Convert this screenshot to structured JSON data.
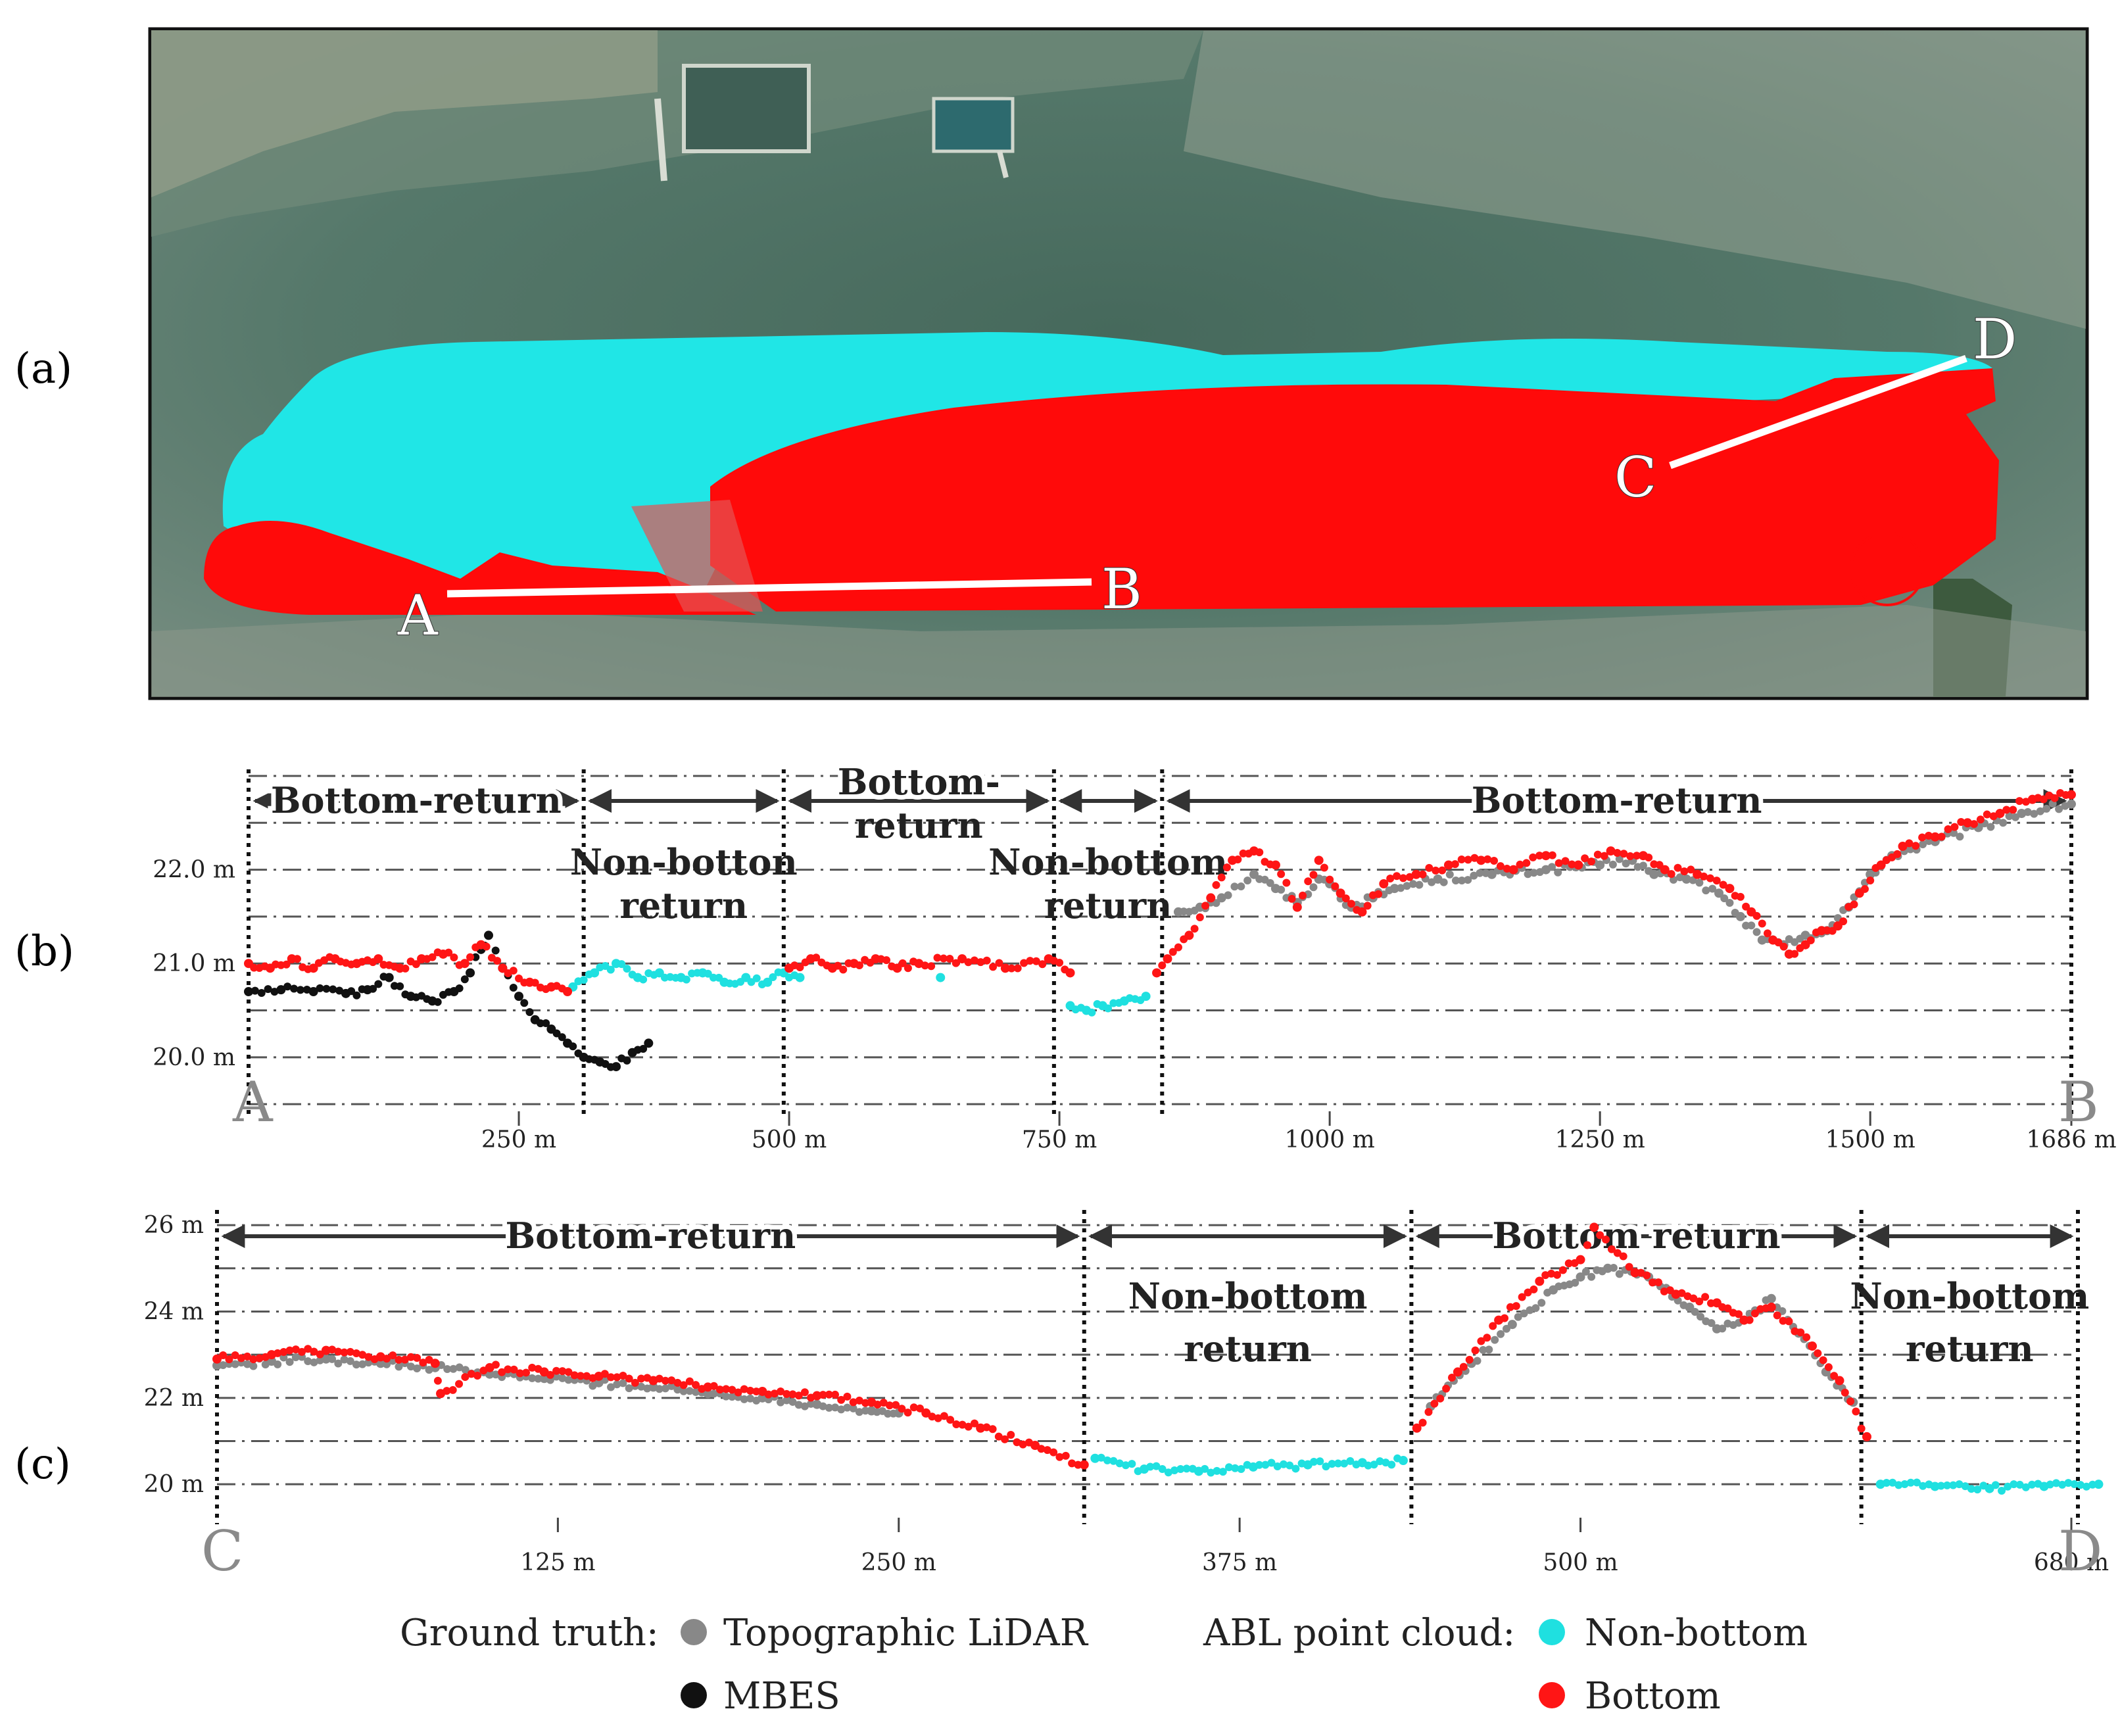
{
  "panels": {
    "a": {
      "label": "(a)",
      "lines": [
        {
          "from": "A",
          "to": "B"
        },
        {
          "from": "C",
          "to": "D"
        }
      ],
      "colors": {
        "water": "#4f7165",
        "non_bottom": "#20e6e6",
        "bottom": "#ff0a0a",
        "line": "#ffffff"
      }
    },
    "b": {
      "label": "(b)"
    },
    "c": {
      "label": "(c)"
    }
  },
  "legend": {
    "ground_truth_label": "Ground truth:",
    "topographic_lidar": "Topographic LiDAR",
    "mbes": "MBES",
    "abl_label": "ABL point cloud:",
    "non_bottom": "Non-bottom",
    "bottom": "Bottom"
  },
  "chart_data": [
    {
      "type": "scatter",
      "panel": "(b)",
      "start_label": "A",
      "end_label": "B",
      "xlim": [
        0,
        1686
      ],
      "x_ticks": [
        {
          "v": 250,
          "label": "250 m"
        },
        {
          "v": 500,
          "label": "500 m"
        },
        {
          "v": 750,
          "label": "750 m"
        },
        {
          "v": 1000,
          "label": "1000 m"
        },
        {
          "v": 1250,
          "label": "1250 m"
        },
        {
          "v": 1500,
          "label": "1500 m"
        },
        {
          "v": 1686,
          "label": "1686 m"
        }
      ],
      "ylim": [
        19.55,
        23.0
      ],
      "y_ticks": [
        {
          "v": 20.0,
          "label": "20.0 m"
        },
        {
          "v": 21.0,
          "label": "21.0 m"
        },
        {
          "v": 22.0,
          "label": "22.0 m"
        }
      ],
      "y_grid": [
        19.5,
        20.0,
        20.5,
        21.0,
        21.5,
        22.0,
        22.5,
        23.0
      ],
      "segment_bounds": [
        0,
        310,
        495,
        745,
        845,
        1686
      ],
      "segments": [
        {
          "x0": 0,
          "x1": 310,
          "lines": [
            "Bottom-return"
          ],
          "at": "arrow"
        },
        {
          "x0": 310,
          "x1": 495,
          "lines": [
            "Non-botton",
            "return"
          ],
          "at": "below"
        },
        {
          "x0": 495,
          "x1": 745,
          "lines": [
            "Bottom-",
            "return"
          ],
          "at": "arrow-stack"
        },
        {
          "x0": 745,
          "x1": 845,
          "lines": [
            "Non-bottom",
            "return"
          ],
          "at": "below"
        },
        {
          "x0": 845,
          "x1": 1686,
          "lines": [
            "Bottom-return"
          ],
          "at": "arrow"
        }
      ],
      "series": [
        {
          "name": "Topographic LiDAR",
          "color": "#888888",
          "points": [
            [
              860,
              21.55
            ],
            [
              880,
              21.6
            ],
            [
              900,
              21.7
            ],
            [
              930,
              21.95
            ],
            [
              950,
              21.8
            ],
            [
              970,
              21.65
            ],
            [
              990,
              21.9
            ],
            [
              1000,
              21.85
            ],
            [
              1020,
              21.6
            ],
            [
              1040,
              21.7
            ],
            [
              1060,
              21.8
            ],
            [
              1100,
              21.9
            ],
            [
              1150,
              21.95
            ],
            [
              1200,
              22.0
            ],
            [
              1250,
              22.05
            ],
            [
              1280,
              22.1
            ],
            [
              1300,
              21.95
            ],
            [
              1330,
              21.9
            ],
            [
              1360,
              21.75
            ],
            [
              1380,
              21.5
            ],
            [
              1400,
              21.25
            ],
            [
              1420,
              21.2
            ],
            [
              1440,
              21.3
            ],
            [
              1460,
              21.35
            ],
            [
              1480,
              21.6
            ],
            [
              1500,
              21.95
            ],
            [
              1520,
              22.15
            ],
            [
              1560,
              22.3
            ],
            [
              1600,
              22.45
            ],
            [
              1640,
              22.6
            ],
            [
              1686,
              22.7
            ]
          ]
        },
        {
          "name": "MBES",
          "color": "#111111",
          "points": [
            [
              0,
              20.7
            ],
            [
              30,
              20.72
            ],
            [
              60,
              20.7
            ],
            [
              90,
              20.68
            ],
            [
              110,
              20.72
            ],
            [
              130,
              20.85
            ],
            [
              150,
              20.65
            ],
            [
              170,
              20.6
            ],
            [
              190,
              20.7
            ],
            [
              205,
              20.9
            ],
            [
              215,
              21.15
            ],
            [
              222,
              21.3
            ],
            [
              235,
              20.95
            ],
            [
              250,
              20.65
            ],
            [
              265,
              20.4
            ],
            [
              280,
              20.3
            ],
            [
              295,
              20.15
            ],
            [
              310,
              20.0
            ],
            [
              325,
              19.95
            ],
            [
              340,
              19.9
            ],
            [
              355,
              20.05
            ],
            [
              370,
              20.15
            ]
          ]
        },
        {
          "name": "Non-bottom",
          "color": "#1fe0e0",
          "points": [
            [
              300,
              20.75
            ],
            [
              320,
              20.9
            ],
            [
              340,
              21.0
            ],
            [
              360,
              20.85
            ],
            [
              380,
              20.9
            ],
            [
              400,
              20.85
            ],
            [
              420,
              20.9
            ],
            [
              440,
              20.8
            ],
            [
              460,
              20.85
            ],
            [
              480,
              20.8
            ],
            [
              495,
              20.9
            ],
            [
              510,
              20.85
            ],
            [
              640,
              20.85
            ],
            [
              760,
              20.55
            ],
            [
              775,
              20.5
            ],
            [
              790,
              20.55
            ],
            [
              810,
              20.6
            ],
            [
              830,
              20.65
            ]
          ]
        },
        {
          "name": "Bottom",
          "color": "#ff1515",
          "points": [
            [
              0,
              21.0
            ],
            [
              20,
              20.95
            ],
            [
              40,
              21.05
            ],
            [
              60,
              20.95
            ],
            [
              80,
              21.05
            ],
            [
              100,
              21.0
            ],
            [
              120,
              21.05
            ],
            [
              140,
              20.95
            ],
            [
              160,
              21.05
            ],
            [
              180,
              21.1
            ],
            [
              200,
              21.0
            ],
            [
              215,
              21.2
            ],
            [
              235,
              20.95
            ],
            [
              260,
              20.8
            ],
            [
              280,
              20.75
            ],
            [
              295,
              20.7
            ],
            [
              500,
              20.95
            ],
            [
              520,
              21.05
            ],
            [
              540,
              20.95
            ],
            [
              560,
              21.0
            ],
            [
              580,
              21.05
            ],
            [
              600,
              20.95
            ],
            [
              620,
              21.0
            ],
            [
              660,
              21.05
            ],
            [
              700,
              20.95
            ],
            [
              740,
              21.05
            ],
            [
              760,
              20.9
            ],
            [
              840,
              20.9
            ],
            [
              850,
              21.05
            ],
            [
              870,
              21.3
            ],
            [
              890,
              21.7
            ],
            [
              910,
              22.1
            ],
            [
              930,
              22.2
            ],
            [
              950,
              22.05
            ],
            [
              970,
              21.6
            ],
            [
              990,
              22.1
            ],
            [
              1010,
              21.75
            ],
            [
              1030,
              21.55
            ],
            [
              1050,
              21.85
            ],
            [
              1080,
              21.95
            ],
            [
              1110,
              22.05
            ],
            [
              1140,
              22.1
            ],
            [
              1170,
              22.0
            ],
            [
              1200,
              22.15
            ],
            [
              1230,
              22.05
            ],
            [
              1260,
              22.2
            ],
            [
              1290,
              22.15
            ],
            [
              1310,
              22.0
            ],
            [
              1340,
              21.95
            ],
            [
              1370,
              21.8
            ],
            [
              1390,
              21.55
            ],
            [
              1410,
              21.25
            ],
            [
              1425,
              21.1
            ],
            [
              1440,
              21.2
            ],
            [
              1455,
              21.35
            ],
            [
              1470,
              21.4
            ],
            [
              1490,
              21.75
            ],
            [
              1510,
              22.05
            ],
            [
              1530,
              22.25
            ],
            [
              1560,
              22.35
            ],
            [
              1590,
              22.5
            ],
            [
              1620,
              22.6
            ],
            [
              1650,
              22.75
            ],
            [
              1686,
              22.8
            ]
          ]
        }
      ]
    },
    {
      "type": "scatter",
      "panel": "(c)",
      "start_label": "C",
      "end_label": "D",
      "xlim": [
        0,
        680
      ],
      "x_ticks": [
        {
          "v": 125,
          "label": "125 m"
        },
        {
          "v": 250,
          "label": "250 m"
        },
        {
          "v": 375,
          "label": "375 m"
        },
        {
          "v": 500,
          "label": "500 m"
        },
        {
          "v": 680,
          "label": "680 m"
        }
      ],
      "ylim": [
        19.5,
        26.2
      ],
      "y_ticks": [
        {
          "v": 20,
          "label": "20 m"
        },
        {
          "v": 22,
          "label": "22 m"
        },
        {
          "v": 24,
          "label": "24 m"
        },
        {
          "v": 26,
          "label": "26 m"
        }
      ],
      "y_grid": [
        20,
        21,
        22,
        23,
        24,
        25,
        26
      ],
      "segment_bounds": [
        0,
        318,
        438,
        603,
        696
      ],
      "segments": [
        {
          "x0": 0,
          "x1": 318,
          "lines": [
            "Bottom-return"
          ],
          "at": "arrow"
        },
        {
          "x0": 318,
          "x1": 438,
          "lines": [
            "Non-bottom",
            "return"
          ],
          "at": "below"
        },
        {
          "x0": 438,
          "x1": 603,
          "lines": [
            "Bottom return"
          ],
          "at": "arrow"
        },
        {
          "x0": 603,
          "x1": 696,
          "lines": [
            "Non-bottom",
            "return"
          ],
          "at": "below"
        }
      ],
      "series": [
        {
          "name": "Topographic LiDAR",
          "color": "#888888",
          "points": [
            [
              0,
              22.75
            ],
            [
              20,
              22.85
            ],
            [
              40,
              22.9
            ],
            [
              60,
              22.8
            ],
            [
              80,
              22.7
            ],
            [
              100,
              22.55
            ],
            [
              120,
              22.45
            ],
            [
              140,
              22.35
            ],
            [
              160,
              22.25
            ],
            [
              180,
              22.1
            ],
            [
              200,
              22.0
            ],
            [
              220,
              21.85
            ],
            [
              240,
              21.7
            ],
            [
              250,
              21.65
            ],
            [
              445,
              21.8
            ],
            [
              460,
              22.8
            ],
            [
              475,
              23.7
            ],
            [
              490,
              24.5
            ],
            [
              500,
              24.8
            ],
            [
              510,
              25.0
            ],
            [
              525,
              24.8
            ],
            [
              540,
              24.1
            ],
            [
              550,
              23.6
            ],
            [
              560,
              23.8
            ],
            [
              570,
              24.3
            ],
            [
              580,
              23.5
            ],
            [
              590,
              22.6
            ],
            [
              600,
              21.9
            ]
          ]
        },
        {
          "name": "Non-bottom",
          "color": "#1fe0e0",
          "points": [
            [
              322,
              20.6
            ],
            [
              340,
              20.35
            ],
            [
              360,
              20.3
            ],
            [
              380,
              20.4
            ],
            [
              400,
              20.45
            ],
            [
              420,
              20.5
            ],
            [
              435,
              20.55
            ],
            [
              610,
              20.0
            ],
            [
              630,
              19.95
            ],
            [
              650,
              19.9
            ],
            [
              670,
              19.95
            ],
            [
              690,
              20.0
            ]
          ]
        },
        {
          "name": "Bottom",
          "color": "#ff1515",
          "points": [
            [
              0,
              22.9
            ],
            [
              20,
              23.0
            ],
            [
              40,
              23.1
            ],
            [
              60,
              22.95
            ],
            [
              80,
              22.8
            ],
            [
              82,
              22.1
            ],
            [
              100,
              22.7
            ],
            [
              120,
              22.6
            ],
            [
              140,
              22.5
            ],
            [
              160,
              22.4
            ],
            [
              180,
              22.25
            ],
            [
              200,
              22.15
            ],
            [
              220,
              22.05
            ],
            [
              240,
              21.9
            ],
            [
              260,
              21.65
            ],
            [
              280,
              21.3
            ],
            [
              300,
              20.9
            ],
            [
              318,
              20.45
            ],
            [
              440,
              21.3
            ],
            [
              455,
              22.6
            ],
            [
              470,
              23.8
            ],
            [
              485,
              24.7
            ],
            [
              500,
              25.2
            ],
            [
              505,
              25.95
            ],
            [
              520,
              24.9
            ],
            [
              535,
              24.4
            ],
            [
              550,
              24.2
            ],
            [
              560,
              23.8
            ],
            [
              570,
              24.1
            ],
            [
              585,
              23.2
            ],
            [
              595,
              22.4
            ],
            [
              605,
              21.1
            ]
          ]
        }
      ]
    }
  ]
}
